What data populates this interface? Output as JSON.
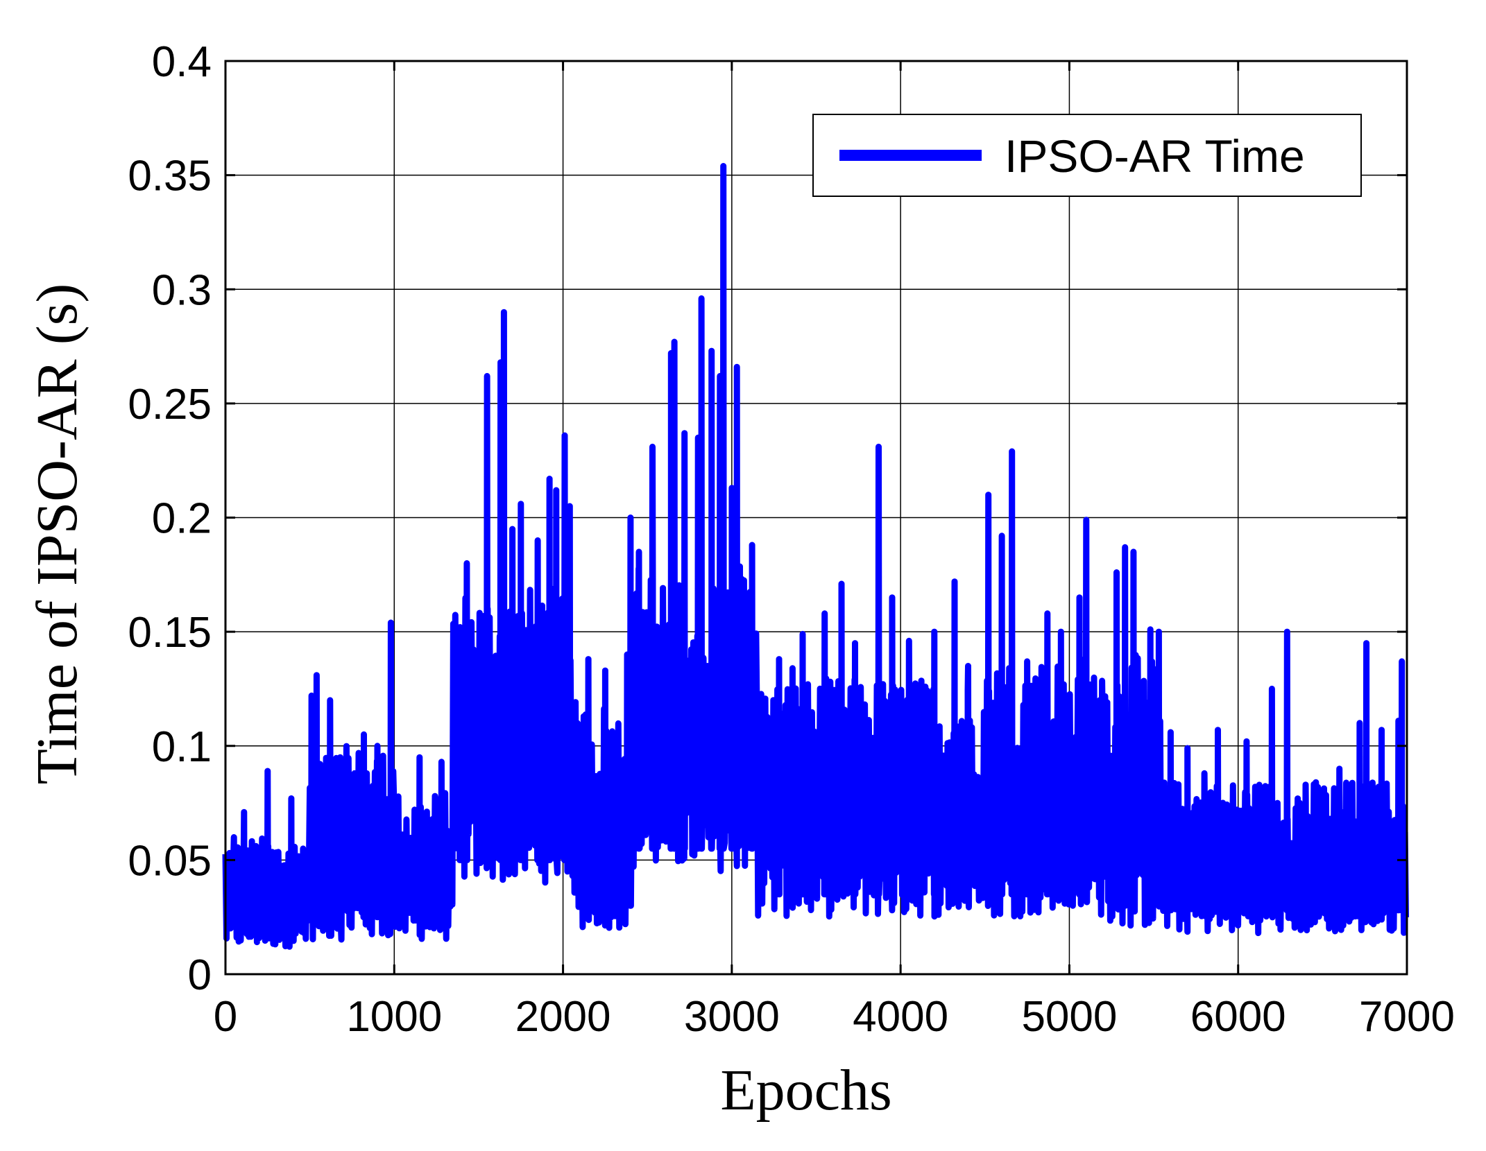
{
  "chart_data": {
    "type": "line",
    "xlabel": "Epochs",
    "ylabel": "Time of IPSO-AR (s)",
    "xlim": [
      0,
      7000
    ],
    "ylim": [
      0,
      0.4
    ],
    "x_ticks": [
      0,
      1000,
      2000,
      3000,
      4000,
      5000,
      6000,
      7000
    ],
    "x_tick_labels": [
      "0",
      "1000",
      "2000",
      "3000",
      "4000",
      "5000",
      "6000",
      "7000"
    ],
    "y_ticks": [
      0,
      0.05,
      0.1,
      0.15,
      0.2,
      0.25,
      0.3,
      0.35,
      0.4
    ],
    "y_tick_labels": [
      "0",
      "0.05",
      "0.1",
      "0.15",
      "0.2",
      "0.25",
      "0.3",
      "0.35",
      "0.4"
    ],
    "grid": true,
    "legend_position": "top-right",
    "colors": {
      "series": "#0000ff",
      "axis": "#000000",
      "grid": "#000000"
    },
    "series": [
      {
        "name": "IPSO-AR Time",
        "segments": [
          {
            "x": [
              0,
              500
            ],
            "low": 0.012,
            "high": 0.06,
            "peaks": [
              [
                50,
                0.06
              ],
              [
                110,
                0.071
              ],
              [
                250,
                0.089
              ],
              [
                390,
                0.077
              ],
              [
                460,
                0.055
              ]
            ]
          },
          {
            "x": [
              500,
              1000
            ],
            "low": 0.015,
            "high": 0.1,
            "peaks": [
              [
                510,
                0.122
              ],
              [
                540,
                0.131
              ],
              [
                620,
                0.12
              ],
              [
                680,
                0.095
              ],
              [
                820,
                0.105
              ],
              [
                900,
                0.1
              ],
              [
                980,
                0.154
              ]
            ]
          },
          {
            "x": [
              1000,
              1350
            ],
            "low": 0.015,
            "high": 0.08,
            "peaks": [
              [
                1150,
                0.095
              ],
              [
                1280,
                0.093
              ]
            ]
          },
          {
            "x": [
              1350,
              2050
            ],
            "low": 0.04,
            "high": 0.17,
            "peaks": [
              [
                1390,
                0.152
              ],
              [
                1430,
                0.18
              ],
              [
                1550,
                0.262
              ],
              [
                1630,
                0.268
              ],
              [
                1650,
                0.29
              ],
              [
                1700,
                0.195
              ],
              [
                1750,
                0.206
              ],
              [
                1850,
                0.19
              ],
              [
                1920,
                0.217
              ],
              [
                1960,
                0.212
              ],
              [
                2010,
                0.236
              ],
              [
                2040,
                0.205
              ]
            ]
          },
          {
            "x": [
              2050,
              2400
            ],
            "low": 0.02,
            "high": 0.12,
            "peaks": [
              [
                2150,
                0.138
              ],
              [
                2250,
                0.133
              ],
              [
                2380,
                0.14
              ],
              [
                2400,
                0.2
              ]
            ]
          },
          {
            "x": [
              2400,
              3150
            ],
            "low": 0.045,
            "high": 0.18,
            "peaks": [
              [
                2450,
                0.185
              ],
              [
                2530,
                0.231
              ],
              [
                2640,
                0.272
              ],
              [
                2660,
                0.277
              ],
              [
                2720,
                0.237
              ],
              [
                2800,
                0.235
              ],
              [
                2820,
                0.296
              ],
              [
                2880,
                0.273
              ],
              [
                2930,
                0.262
              ],
              [
                2950,
                0.354
              ],
              [
                3000,
                0.213
              ],
              [
                3030,
                0.266
              ],
              [
                3120,
                0.188
              ]
            ]
          },
          {
            "x": [
              3150,
              3800
            ],
            "low": 0.025,
            "high": 0.13,
            "peaks": [
              [
                3280,
                0.138
              ],
              [
                3360,
                0.134
              ],
              [
                3420,
                0.149
              ],
              [
                3550,
                0.158
              ],
              [
                3650,
                0.171
              ],
              [
                3730,
                0.145
              ]
            ]
          },
          {
            "x": [
              3800,
              4500
            ],
            "low": 0.025,
            "high": 0.13,
            "peaks": [
              [
                3870,
                0.231
              ],
              [
                3950,
                0.165
              ],
              [
                4050,
                0.146
              ],
              [
                4200,
                0.15
              ],
              [
                4320,
                0.172
              ],
              [
                4400,
                0.135
              ]
            ]
          },
          {
            "x": [
              4500,
              5200
            ],
            "low": 0.025,
            "high": 0.14,
            "peaks": [
              [
                4520,
                0.21
              ],
              [
                4600,
                0.192
              ],
              [
                4660,
                0.229
              ],
              [
                4750,
                0.137
              ],
              [
                4870,
                0.158
              ],
              [
                4950,
                0.15
              ],
              [
                5060,
                0.165
              ],
              [
                5100,
                0.199
              ],
              [
                5180,
                0.12
              ]
            ]
          },
          {
            "x": [
              5200,
              5550
            ],
            "low": 0.02,
            "high": 0.14,
            "peaks": [
              [
                5280,
                0.176
              ],
              [
                5330,
                0.187
              ],
              [
                5380,
                0.185
              ],
              [
                5480,
                0.151
              ],
              [
                5530,
                0.15
              ]
            ]
          },
          {
            "x": [
              5550,
              7000
            ],
            "low": 0.018,
            "high": 0.085,
            "peaks": [
              [
                5600,
                0.106
              ],
              [
                5700,
                0.099
              ],
              [
                5800,
                0.088
              ],
              [
                5880,
                0.107
              ],
              [
                6050,
                0.102
              ],
              [
                6200,
                0.125
              ],
              [
                6290,
                0.15
              ],
              [
                6400,
                0.083
              ],
              [
                6600,
                0.09
              ],
              [
                6720,
                0.11
              ],
              [
                6760,
                0.145
              ],
              [
                6850,
                0.107
              ],
              [
                6950,
                0.111
              ],
              [
                6970,
                0.137
              ]
            ]
          }
        ]
      }
    ]
  }
}
